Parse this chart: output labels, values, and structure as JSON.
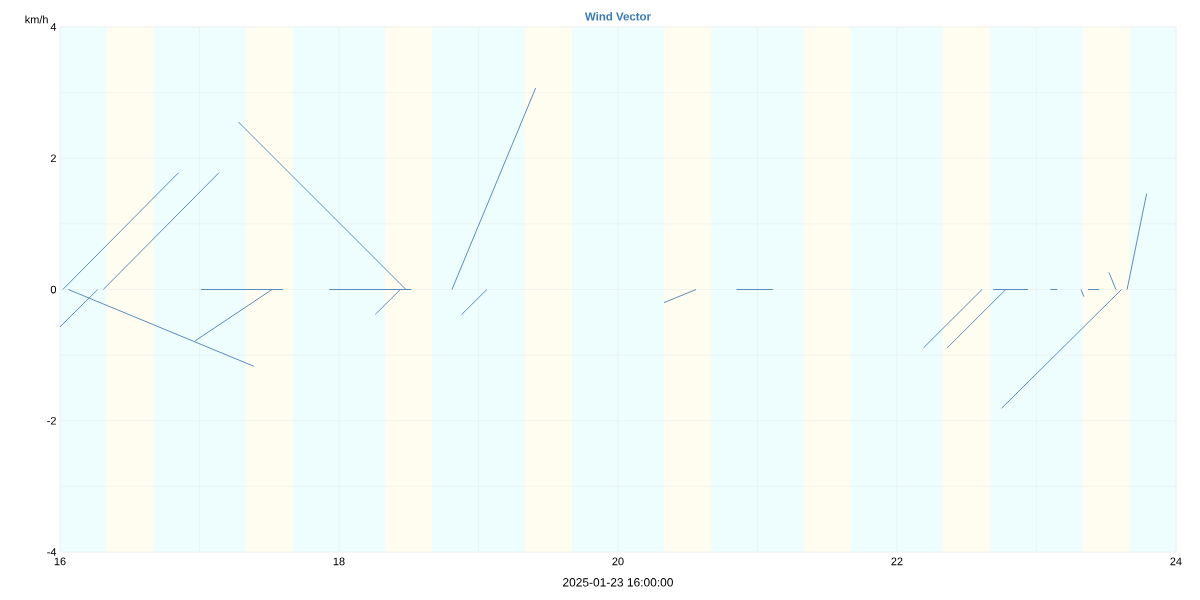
{
  "chart_data": {
    "type": "line",
    "title": "Wind Vector",
    "xlabel": "2025-01-23 16:00:00",
    "ylabel": "km/h",
    "xlim": [
      16,
      24
    ],
    "ylim": [
      -4,
      4
    ],
    "xticks": [
      16,
      {
        "value": 17,
        "label": null
      },
      18,
      {
        "value": 19,
        "label": null
      },
      20,
      {
        "value": 21,
        "label": null
      },
      22,
      {
        "value": 23,
        "label": null
      },
      24
    ],
    "yticks": [
      -4,
      {
        "value": -3,
        "label": null
      },
      -2,
      {
        "value": -1,
        "label": null
      },
      0,
      {
        "value": 1,
        "label": null
      },
      2,
      {
        "value": 3,
        "label": null
      },
      4
    ],
    "grid": true,
    "legend": false,
    "marker": "none",
    "line_style": "solid",
    "bands": [
      {
        "axis": "x",
        "from": 16,
        "to": 24,
        "color": "#eefdfd"
      },
      {
        "axis": "x",
        "from": 16.33,
        "to": 16.67,
        "color": "#fefdf0"
      },
      {
        "axis": "x",
        "from": 17.33,
        "to": 17.67,
        "color": "#fefdf0"
      },
      {
        "axis": "x",
        "from": 18.33,
        "to": 18.67,
        "color": "#fefdf0"
      },
      {
        "axis": "x",
        "from": 19.33,
        "to": 19.67,
        "color": "#fefdf0"
      },
      {
        "axis": "x",
        "from": 20.33,
        "to": 20.67,
        "color": "#fefdf0"
      },
      {
        "axis": "x",
        "from": 21.33,
        "to": 21.67,
        "color": "#fefdf0"
      },
      {
        "axis": "x",
        "from": 22.33,
        "to": 22.67,
        "color": "#fefdf0"
      },
      {
        "axis": "x",
        "from": 23.33,
        "to": 23.67,
        "color": "#fefdf0"
      }
    ],
    "series": [
      {
        "color": "#4a7fb8",
        "x": [
          16.02,
          16.85,
          null,
          16.06,
          17.39,
          null,
          16.27,
          16,
          null,
          16.31,
          17.14,
          null,
          17.01,
          17.6,
          null,
          17.52,
          16.97,
          null,
          17.93,
          18.52,
          null,
          18.48,
          17.28,
          null,
          18.44,
          18.26,
          null,
          18.81,
          19.41,
          null,
          19.06,
          18.88,
          null,
          20.56,
          20.33,
          null,
          20.85,
          21.11,
          null,
          22.61,
          22.19,
          null,
          22.78,
          22.36,
          null,
          22.69,
          22.94,
          null,
          23.1,
          23.15,
          null,
          23.32,
          23.34,
          null,
          23.37,
          23.45,
          null,
          23.57,
          23.52,
          null,
          23.61,
          22.75,
          null,
          23.65,
          23.79
        ],
        "values": [
          0,
          1.78,
          null,
          0,
          -1.17,
          null,
          0,
          -0.57,
          null,
          0,
          1.78,
          null,
          0,
          0,
          null,
          0,
          -0.78,
          null,
          0,
          0,
          null,
          0,
          2.55,
          null,
          0,
          -0.38,
          null,
          0,
          3.07,
          null,
          0,
          -0.38,
          null,
          0,
          -0.2,
          null,
          0,
          0,
          null,
          0,
          -0.89,
          null,
          0,
          -0.89,
          null,
          0,
          0,
          null,
          0,
          0,
          null,
          0,
          -0.11,
          null,
          0,
          0,
          null,
          0,
          0.26,
          null,
          0,
          -1.81,
          null,
          0,
          1.46
        ]
      }
    ]
  }
}
